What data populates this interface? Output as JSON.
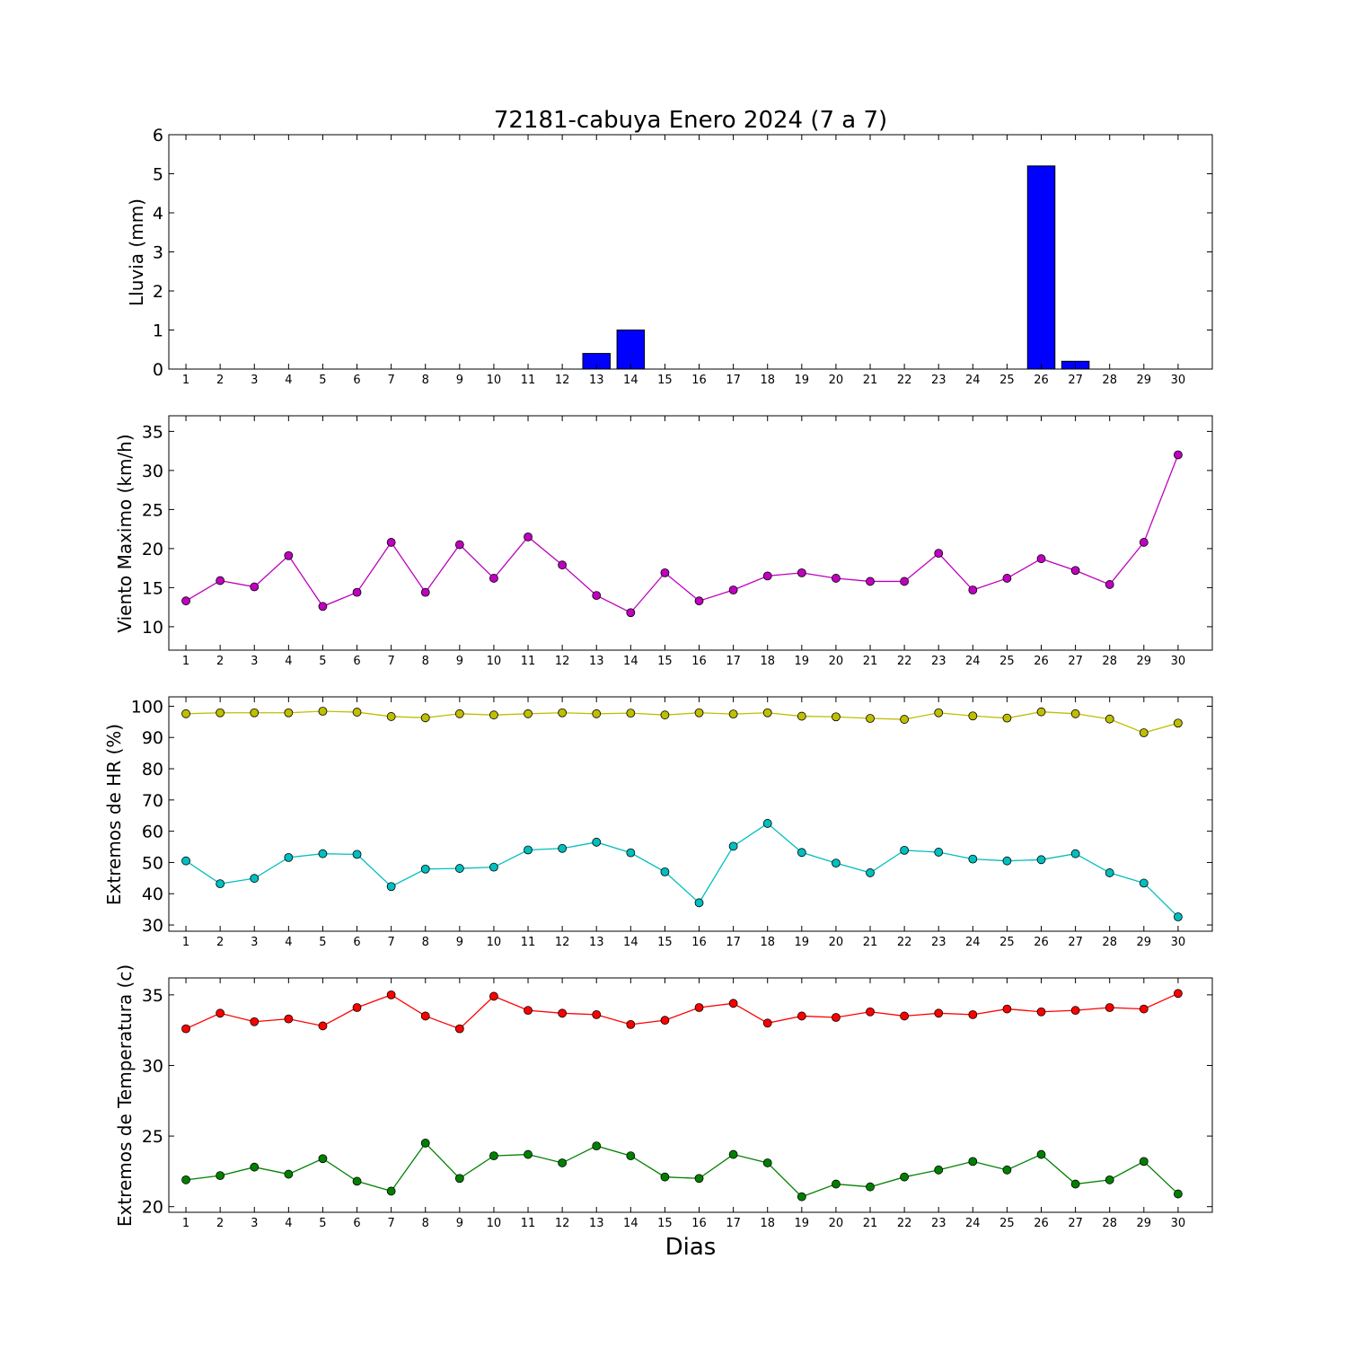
{
  "chart_data": [
    {
      "type": "bar",
      "title": "72181-cabuya Enero 2024  (7 a 7)",
      "ylabel": "Lluvia (mm)",
      "xlabel": "",
      "x": [
        1,
        2,
        3,
        4,
        5,
        6,
        7,
        8,
        9,
        10,
        11,
        12,
        13,
        14,
        15,
        16,
        17,
        18,
        19,
        20,
        21,
        22,
        23,
        24,
        25,
        26,
        27,
        28,
        29,
        30
      ],
      "ylim": [
        0,
        6
      ],
      "yticks": [
        0,
        1,
        2,
        3,
        4,
        5,
        6
      ],
      "grid": false,
      "series": [
        {
          "color": "#0000ff",
          "values": [
            0,
            0,
            0,
            0,
            0,
            0,
            0,
            0,
            0,
            0,
            0,
            0,
            0.4,
            1.0,
            0,
            0,
            0,
            0,
            0,
            0,
            0,
            0,
            0,
            0,
            0,
            5.2,
            0.2,
            0,
            0,
            0
          ]
        }
      ]
    },
    {
      "type": "line",
      "title": "",
      "ylabel": "Viento Maximo (km/h)",
      "xlabel": "",
      "x": [
        1,
        2,
        3,
        4,
        5,
        6,
        7,
        8,
        9,
        10,
        11,
        12,
        13,
        14,
        15,
        16,
        17,
        18,
        19,
        20,
        21,
        22,
        23,
        24,
        25,
        26,
        27,
        28,
        29,
        30
      ],
      "ylim": [
        7,
        37
      ],
      "yticks": [
        10,
        15,
        20,
        25,
        30,
        35
      ],
      "grid": false,
      "series": [
        {
          "color": "#bf00bf",
          "values": [
            13.3,
            15.9,
            15.1,
            19.1,
            12.6,
            14.4,
            20.8,
            14.4,
            20.5,
            16.2,
            21.5,
            17.9,
            14.0,
            11.8,
            16.9,
            13.3,
            14.7,
            16.5,
            16.9,
            16.2,
            15.8,
            15.8,
            19.4,
            14.7,
            16.2,
            18.7,
            17.2,
            15.4,
            20.8,
            32.0
          ]
        }
      ]
    },
    {
      "type": "line",
      "title": "",
      "ylabel": "Extremos de HR (%)",
      "xlabel": "",
      "x": [
        1,
        2,
        3,
        4,
        5,
        6,
        7,
        8,
        9,
        10,
        11,
        12,
        13,
        14,
        15,
        16,
        17,
        18,
        19,
        20,
        21,
        22,
        23,
        24,
        25,
        26,
        27,
        28,
        29,
        30
      ],
      "ylim": [
        28,
        103
      ],
      "yticks": [
        30,
        40,
        50,
        60,
        70,
        80,
        90,
        100
      ],
      "grid": false,
      "series": [
        {
          "color": "#bfbf00",
          "values": [
            97.6,
            97.9,
            97.9,
            97.9,
            98.4,
            98.1,
            96.7,
            96.3,
            97.6,
            97.2,
            97.6,
            97.9,
            97.6,
            97.8,
            97.2,
            97.9,
            97.5,
            97.9,
            96.8,
            96.6,
            96.1,
            95.8,
            97.9,
            96.9,
            96.2,
            98.2,
            97.6,
            95.9,
            91.5,
            94.6
          ]
        },
        {
          "color": "#00bfbf",
          "values": [
            50.5,
            43.2,
            44.9,
            51.6,
            52.8,
            52.6,
            42.3,
            47.9,
            48.1,
            48.5,
            54.0,
            54.5,
            56.5,
            53.1,
            47.0,
            37.1,
            55.2,
            62.5,
            53.2,
            49.8,
            46.7,
            53.9,
            53.3,
            51.1,
            50.5,
            50.9,
            52.8,
            46.7,
            43.4,
            32.6
          ]
        }
      ]
    },
    {
      "type": "line",
      "title": "",
      "ylabel": "Extremos de Temperatura (c)",
      "xlabel": "Dias",
      "x": [
        1,
        2,
        3,
        4,
        5,
        6,
        7,
        8,
        9,
        10,
        11,
        12,
        13,
        14,
        15,
        16,
        17,
        18,
        19,
        20,
        21,
        22,
        23,
        24,
        25,
        26,
        27,
        28,
        29,
        30
      ],
      "ylim": [
        19.6,
        36.2
      ],
      "yticks": [
        20,
        25,
        30,
        35
      ],
      "grid": false,
      "series": [
        {
          "color": "#ff0000",
          "values": [
            32.6,
            33.7,
            33.1,
            33.3,
            32.8,
            34.1,
            35.0,
            33.5,
            32.6,
            34.9,
            33.9,
            33.7,
            33.6,
            32.9,
            33.2,
            34.1,
            34.4,
            33.0,
            33.5,
            33.4,
            33.8,
            33.5,
            33.7,
            33.6,
            34.0,
            33.8,
            33.9,
            34.1,
            34.0,
            35.1
          ]
        },
        {
          "color": "#008000",
          "values": [
            21.9,
            22.2,
            22.8,
            22.3,
            23.4,
            21.8,
            21.1,
            24.5,
            22.0,
            23.6,
            23.7,
            23.1,
            24.3,
            23.6,
            22.1,
            22.0,
            23.7,
            23.1,
            20.7,
            21.6,
            21.4,
            22.1,
            22.6,
            23.2,
            22.6,
            23.7,
            21.6,
            21.9,
            23.2,
            20.9
          ]
        }
      ]
    }
  ]
}
